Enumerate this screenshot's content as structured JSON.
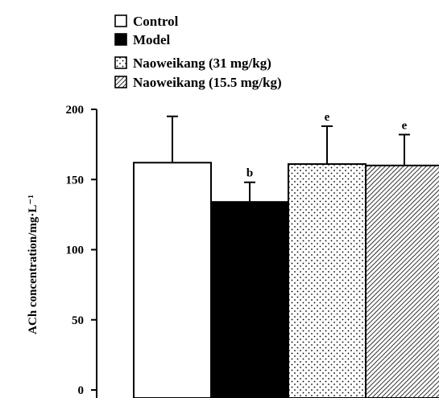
{
  "chart_data": {
    "type": "bar",
    "ylabel": "ACh concentration/mg·L⁻¹",
    "ylim": [
      0,
      200
    ],
    "yticks": [
      0,
      50,
      100,
      150,
      200
    ],
    "legend_position": "top-left",
    "series": [
      {
        "name": "Control",
        "value": 162,
        "error": 33,
        "annotation": "",
        "pattern": "white"
      },
      {
        "name": "Model",
        "value": 134,
        "error": 14,
        "annotation": "b",
        "pattern": "black"
      },
      {
        "name": "Naoweikang (31 mg/kg)",
        "value": 161,
        "error": 27,
        "annotation": "e",
        "pattern": "dots"
      },
      {
        "name": "Naoweikang (15.5 mg/kg)",
        "value": 160,
        "error": 22,
        "annotation": "e",
        "pattern": "hatch"
      }
    ]
  }
}
